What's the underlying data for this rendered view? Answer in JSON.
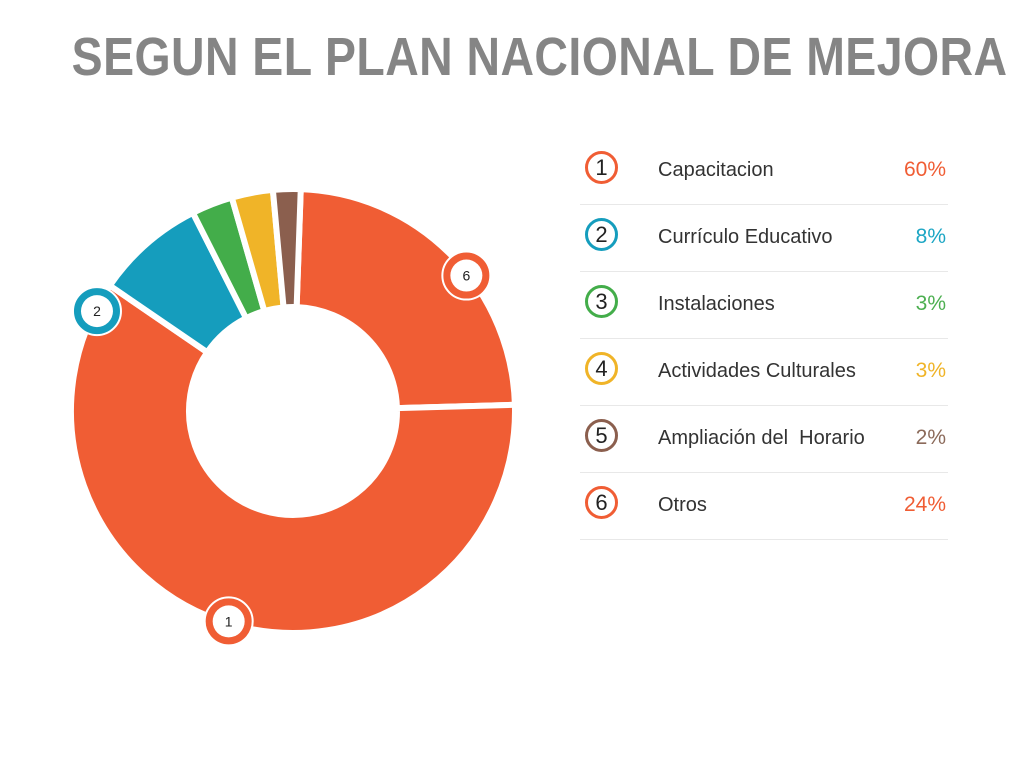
{
  "title": "SEGUN EL PLAN NACIONAL DE MEJORA",
  "chart_data": {
    "type": "pie",
    "categories": [
      "Capacitacion",
      "Currículo Educativo",
      "Instalaciones",
      "Actividades Culturales",
      "Ampliación del  Horario",
      "Otros"
    ],
    "values": [
      60,
      8,
      3,
      3,
      2,
      24
    ],
    "value_labels": [
      "60%",
      "8%",
      "3%",
      "3%",
      "2%",
      "24%"
    ],
    "slice_numbers": [
      "1",
      "2",
      "3",
      "4",
      "5",
      "6"
    ],
    "marker_labels": [
      "1",
      "2",
      "6"
    ],
    "colors": [
      "#f05d34",
      "#159dbd",
      "#43ad4a",
      "#f0b428",
      "#8b5f4e",
      "#f05d34"
    ],
    "value_colors": [
      "#f05d34",
      "#1ca6c4",
      "#4caf50",
      "#f0b428",
      "#8b6a5a",
      "#f05d34"
    ],
    "legend_position": "right"
  }
}
